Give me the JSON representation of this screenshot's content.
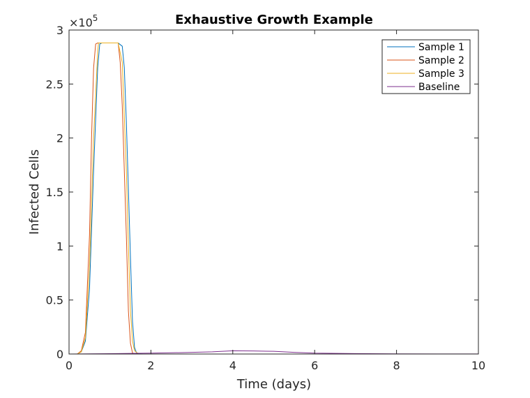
{
  "chart_data": {
    "type": "line",
    "title": "Exhaustive Growth Example",
    "xlabel": "Time (days)",
    "ylabel": "Infected Cells",
    "xlim": [
      0,
      10
    ],
    "ylim": [
      0,
      300000
    ],
    "y_exponent_base": "×10",
    "y_exponent_power": "5",
    "x_ticks": [
      0,
      2,
      4,
      6,
      8,
      10
    ],
    "x_tick_labels": [
      "0",
      "2",
      "4",
      "6",
      "8",
      "10"
    ],
    "y_ticks": [
      0,
      50000,
      100000,
      150000,
      200000,
      250000,
      300000
    ],
    "y_tick_labels": [
      "0",
      "0.5",
      "1",
      "1.5",
      "2",
      "2.5",
      "3"
    ],
    "grid": false,
    "legend_position": "top-right",
    "series": [
      {
        "name": "Sample 1",
        "color": "#0072BD",
        "x": [
          0,
          0.2,
          0.3,
          0.4,
          0.5,
          0.6,
          0.7,
          0.75,
          0.8,
          1.0,
          1.2,
          1.3,
          1.35,
          1.4,
          1.5,
          1.55,
          1.6,
          1.65,
          1.8,
          2,
          4,
          6,
          8,
          10
        ],
        "y": [
          0,
          0,
          2000,
          12000,
          60000,
          170000,
          265000,
          287000,
          288000,
          288000,
          288000,
          285000,
          265000,
          215000,
          90000,
          30000,
          6000,
          1000,
          0,
          0,
          0,
          0,
          0,
          0
        ]
      },
      {
        "name": "Sample 2",
        "color": "#D95319",
        "x": [
          0,
          0.2,
          0.3,
          0.4,
          0.5,
          0.55,
          0.6,
          0.65,
          0.7,
          1.0,
          1.2,
          1.25,
          1.3,
          1.4,
          1.45,
          1.5,
          1.55,
          1.6,
          2,
          4,
          6,
          8,
          10
        ],
        "y": [
          0,
          0,
          3000,
          20000,
          110000,
          200000,
          265000,
          287000,
          288000,
          288000,
          288000,
          270000,
          230000,
          110000,
          40000,
          10000,
          1000,
          0,
          0,
          0,
          0,
          0,
          0
        ]
      },
      {
        "name": "Sample 3",
        "color": "#EDB120",
        "x": [
          0,
          0.2,
          0.3,
          0.4,
          0.5,
          0.6,
          0.7,
          0.72,
          0.8,
          1.0,
          1.2,
          1.3,
          1.4,
          1.45,
          1.5,
          1.55,
          1.6,
          1.7,
          2,
          4,
          6,
          8,
          10
        ],
        "y": [
          0,
          0,
          2000,
          15000,
          80000,
          200000,
          280000,
          288000,
          288000,
          288000,
          288000,
          270000,
          170000,
          100000,
          40000,
          12000,
          3000,
          0,
          0,
          0,
          0,
          0,
          0
        ]
      },
      {
        "name": "Baseline",
        "color": "#7E2F8E",
        "x": [
          0,
          1,
          2,
          3,
          3.5,
          4,
          4.5,
          5,
          5.5,
          6,
          7,
          8,
          9,
          10
        ],
        "y": [
          0,
          300,
          800,
          1500,
          2000,
          3000,
          2800,
          2500,
          1500,
          800,
          400,
          200,
          100,
          50
        ]
      }
    ]
  }
}
